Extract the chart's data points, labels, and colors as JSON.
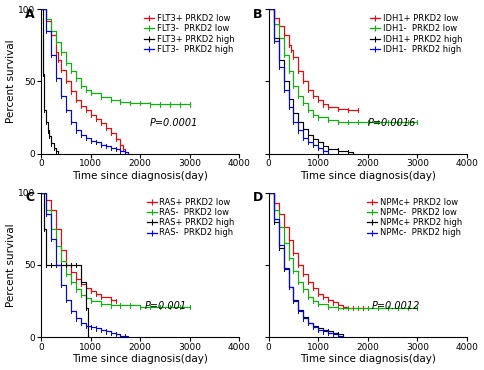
{
  "panels": [
    {
      "label": "A",
      "pvalue": "P=0.0001",
      "pvalue_x": 0.55,
      "pvalue_y": 0.18,
      "legend_entries": [
        {
          "label": "FLT3+ PRKD2 low",
          "color": "#FF0000"
        },
        {
          "label": "FLT3-  PRKD2 low",
          "color": "#00BB00"
        },
        {
          "label": "FLT3+ PRKD2 high",
          "color": "#000000"
        },
        {
          "label": "FLT3-  PRKD2 high",
          "color": "#0000FF"
        }
      ],
      "curves": [
        {
          "color": "#FF0000",
          "x": [
            0,
            100,
            200,
            300,
            350,
            400,
            500,
            600,
            700,
            800,
            900,
            1000,
            1100,
            1200,
            1300,
            1400,
            1500,
            1600,
            1650,
            1700
          ],
          "y": [
            100,
            92,
            82,
            70,
            65,
            58,
            50,
            43,
            37,
            33,
            30,
            27,
            24,
            21,
            18,
            14,
            10,
            6,
            3,
            0
          ]
        },
        {
          "color": "#00BB00",
          "x": [
            0,
            100,
            200,
            300,
            400,
            500,
            600,
            700,
            800,
            900,
            1000,
            1200,
            1400,
            1600,
            1800,
            2000,
            2200,
            2400,
            2600,
            2800,
            3000
          ],
          "y": [
            100,
            93,
            85,
            77,
            70,
            63,
            57,
            52,
            47,
            44,
            42,
            39,
            37,
            36,
            35,
            35,
            34,
            34,
            34,
            34,
            34
          ]
        },
        {
          "color": "#000000",
          "x": [
            0,
            30,
            60,
            100,
            130,
            160,
            200,
            250,
            300,
            350
          ],
          "y": [
            100,
            55,
            30,
            22,
            16,
            12,
            7,
            4,
            2,
            0
          ]
        },
        {
          "color": "#0000FF",
          "x": [
            0,
            100,
            200,
            300,
            400,
            500,
            600,
            700,
            800,
            900,
            1000,
            1100,
            1200,
            1300,
            1400,
            1500,
            1600,
            1700,
            1750
          ],
          "y": [
            100,
            85,
            68,
            52,
            40,
            30,
            22,
            16,
            13,
            11,
            9,
            8,
            6,
            5,
            4,
            3,
            2,
            1,
            0
          ]
        }
      ]
    },
    {
      "label": "B",
      "pvalue": "P=0.0016",
      "pvalue_x": 0.5,
      "pvalue_y": 0.18,
      "legend_entries": [
        {
          "label": "IDH1+ PRKD2 low",
          "color": "#FF0000"
        },
        {
          "label": "IDH1-  PRKD2 low",
          "color": "#00BB00"
        },
        {
          "label": "IDH1+ PRKD2 high",
          "color": "#000000"
        },
        {
          "label": "IDH1-  PRKD2 high",
          "color": "#0000FF"
        }
      ],
      "curves": [
        {
          "color": "#FF0000",
          "x": [
            0,
            100,
            200,
            300,
            400,
            450,
            500,
            600,
            700,
            800,
            900,
            1000,
            1100,
            1200,
            1400,
            1600,
            1800
          ],
          "y": [
            100,
            94,
            88,
            82,
            75,
            72,
            67,
            57,
            50,
            44,
            40,
            37,
            34,
            32,
            31,
            30,
            30
          ]
        },
        {
          "color": "#00BB00",
          "x": [
            0,
            100,
            200,
            300,
            400,
            500,
            600,
            700,
            800,
            900,
            1000,
            1200,
            1400,
            1600,
            1800,
            2000,
            2200,
            2400,
            2600,
            2800,
            3000
          ],
          "y": [
            100,
            90,
            80,
            68,
            57,
            47,
            40,
            35,
            30,
            27,
            25,
            23,
            22,
            22,
            22,
            22,
            22,
            22,
            22,
            22,
            22
          ]
        },
        {
          "color": "#000000",
          "x": [
            0,
            100,
            200,
            300,
            400,
            500,
            600,
            700,
            800,
            900,
            1000,
            1100,
            1200,
            1400,
            1600,
            1700
          ],
          "y": [
            100,
            80,
            65,
            50,
            38,
            28,
            22,
            17,
            13,
            10,
            8,
            5,
            3,
            2,
            1,
            0
          ]
        },
        {
          "color": "#0000FF",
          "x": [
            0,
            100,
            200,
            300,
            400,
            500,
            600,
            700,
            800,
            900,
            1000,
            1100,
            1200
          ],
          "y": [
            100,
            78,
            60,
            44,
            32,
            22,
            16,
            11,
            8,
            6,
            4,
            2,
            0
          ]
        }
      ]
    },
    {
      "label": "C",
      "pvalue": "P=0.001",
      "pvalue_x": 0.52,
      "pvalue_y": 0.18,
      "legend_entries": [
        {
          "label": "RAS+ PRKD2 low",
          "color": "#FF0000"
        },
        {
          "label": "RAS-  PRKD2 low",
          "color": "#00BB00"
        },
        {
          "label": "RAS+ PRKD2 high",
          "color": "#000000"
        },
        {
          "label": "RAS-  PRKD2 high",
          "color": "#0000FF"
        }
      ],
      "curves": [
        {
          "color": "#FF0000",
          "x": [
            0,
            100,
            200,
            300,
            400,
            500,
            600,
            700,
            800,
            900,
            1000,
            1100,
            1200,
            1400,
            1500
          ],
          "y": [
            100,
            95,
            88,
            75,
            60,
            50,
            45,
            40,
            37,
            34,
            32,
            30,
            28,
            26,
            25
          ]
        },
        {
          "color": "#00BB00",
          "x": [
            0,
            100,
            200,
            300,
            400,
            500,
            600,
            700,
            800,
            900,
            1000,
            1200,
            1400,
            1600,
            1800,
            2000,
            2200,
            2400,
            2600,
            2800,
            3000
          ],
          "y": [
            100,
            88,
            75,
            63,
            53,
            44,
            38,
            33,
            29,
            27,
            25,
            23,
            22,
            22,
            22,
            21,
            21,
            21,
            21,
            21,
            21
          ]
        },
        {
          "color": "#000000",
          "x": [
            0,
            50,
            100,
            200,
            300,
            400,
            500,
            600,
            700,
            800,
            900,
            950
          ],
          "y": [
            100,
            75,
            50,
            50,
            50,
            50,
            50,
            50,
            50,
            38,
            20,
            0
          ]
        },
        {
          "color": "#0000FF",
          "x": [
            0,
            100,
            200,
            300,
            400,
            500,
            600,
            700,
            800,
            900,
            1000,
            1100,
            1200,
            1300,
            1400,
            1500,
            1600,
            1700,
            1750
          ],
          "y": [
            100,
            85,
            68,
            50,
            36,
            26,
            18,
            13,
            10,
            8,
            7,
            6,
            5,
            4,
            3,
            2,
            1,
            1,
            0
          ]
        }
      ]
    },
    {
      "label": "D",
      "pvalue": "P=0.0012",
      "pvalue_x": 0.52,
      "pvalue_y": 0.18,
      "legend_entries": [
        {
          "label": "NPMc+ PRKD2 low",
          "color": "#FF0000"
        },
        {
          "label": "NPMc-  PRKD2 low",
          "color": "#00BB00"
        },
        {
          "label": "NPMc+ PRKD2 high",
          "color": "#000000"
        },
        {
          "label": "NPMc-  PRKD2 high",
          "color": "#0000FF"
        }
      ],
      "curves": [
        {
          "color": "#FF0000",
          "x": [
            0,
            100,
            200,
            300,
            400,
            500,
            600,
            700,
            800,
            900,
            1000,
            1100,
            1200,
            1300,
            1400,
            1500,
            1600,
            1700,
            1800,
            1900,
            2000
          ],
          "y": [
            100,
            93,
            85,
            76,
            67,
            58,
            50,
            44,
            38,
            34,
            30,
            28,
            26,
            24,
            22,
            21,
            20,
            20,
            20,
            20,
            20
          ]
        },
        {
          "color": "#00BB00",
          "x": [
            0,
            100,
            200,
            300,
            400,
            500,
            600,
            700,
            800,
            900,
            1000,
            1200,
            1400,
            1600,
            1800,
            2000,
            2200,
            2400,
            2600,
            2800,
            3000
          ],
          "y": [
            100,
            88,
            76,
            65,
            55,
            46,
            38,
            33,
            28,
            25,
            23,
            21,
            20,
            20,
            20,
            20,
            20,
            20,
            20,
            20,
            20
          ]
        },
        {
          "color": "#000000",
          "x": [
            0,
            100,
            200,
            300,
            400,
            500,
            600,
            700,
            800,
            900,
            1000,
            1100,
            1200,
            1300,
            1400,
            1500
          ],
          "y": [
            100,
            80,
            62,
            47,
            35,
            26,
            19,
            14,
            10,
            8,
            6,
            5,
            4,
            3,
            2,
            0
          ]
        },
        {
          "color": "#0000FF",
          "x": [
            0,
            100,
            200,
            300,
            400,
            500,
            600,
            700,
            800,
            900,
            1000,
            1100,
            1200,
            1300,
            1400,
            1500
          ],
          "y": [
            100,
            82,
            64,
            48,
            35,
            25,
            18,
            13,
            10,
            7,
            5,
            4,
            3,
            2,
            1,
            0
          ]
        }
      ]
    }
  ],
  "xlim": [
    0,
    4000
  ],
  "ylim": [
    0,
    100
  ],
  "xticks": [
    0,
    1000,
    2000,
    3000,
    4000
  ],
  "yticks": [
    0,
    50,
    100
  ],
  "xlabel": "Time since diagnosis(day)",
  "ylabel": "Percent survival",
  "tick_fontsize": 6.5,
  "label_fontsize": 7.5,
  "legend_fontsize": 6,
  "pvalue_fontsize": 7
}
